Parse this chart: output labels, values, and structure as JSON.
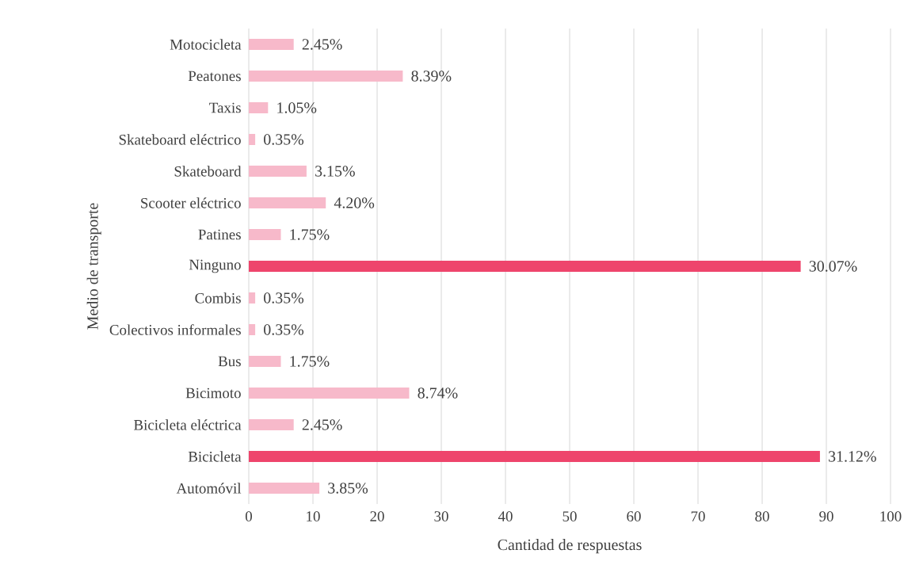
{
  "chart_data": {
    "type": "bar",
    "orientation": "horizontal",
    "xlabel": "Cantidad de respuestas",
    "ylabel": "Medio de transporte",
    "categories": [
      "Motocicleta",
      "Peatones",
      "Taxis",
      "Skateboard eléctrico",
      "Skateboard",
      "Scooter eléctrico",
      "Patines",
      "Ninguno",
      "Combis",
      "Colectivos informales",
      "Bus",
      "Bicimoto",
      "Bicicleta eléctrica",
      "Bicicleta",
      "Automóvil"
    ],
    "values": [
      7,
      24,
      3,
      1,
      9,
      12,
      5,
      86,
      1,
      1,
      5,
      25,
      7,
      89,
      11
    ],
    "annotations": [
      {
        "text": "2.45%",
        "x": 7,
        "y": "Motocicleta"
      },
      {
        "text": "8.39%",
        "x": 24,
        "y": "Peatones"
      },
      {
        "text": "1.05%",
        "x": 3,
        "y": "Taxis"
      },
      {
        "text": "0.35%",
        "x": 1,
        "y": "Skateboard eléctrico"
      },
      {
        "text": "3.15%",
        "x": 9,
        "y": "Skateboard"
      },
      {
        "text": "4.20%",
        "x": 12,
        "y": "Scooter eléctrico"
      },
      {
        "text": "1.75%",
        "x": 5,
        "y": "Patines"
      },
      {
        "text": "30.07%",
        "x": 86,
        "y": "Ninguno"
      },
      {
        "text": "0.35%",
        "x": 1,
        "y": "Combis"
      },
      {
        "text": "0.35%",
        "x": 1,
        "y": "Colectivos informales"
      },
      {
        "text": "1.75%",
        "x": 5,
        "y": "Bus"
      },
      {
        "text": "8.74%",
        "x": 25,
        "y": "Bicimoto"
      },
      {
        "text": "2.45%",
        "x": 7,
        "y": "Bicicleta eléctrica"
      },
      {
        "text": "31.12%",
        "x": 89,
        "y": "Bicicleta"
      },
      {
        "text": "3.85%",
        "x": 11,
        "y": "Automóvil"
      }
    ],
    "colors": [
      "#f7b9ca",
      "#f7b9ca",
      "#f7b9ca",
      "#f7b9ca",
      "#f7b9ca",
      "#f7b9ca",
      "#f7b9ca",
      "#ee456c",
      "#f7b9ca",
      "#f7b9ca",
      "#f7b9ca",
      "#f7b9ca",
      "#f7b9ca",
      "#ee456c",
      "#f7b9ca"
    ],
    "xlim": [
      0,
      100
    ],
    "xticks": [
      0,
      10,
      20,
      30,
      40,
      50,
      60,
      70,
      80,
      90,
      100
    ],
    "grid": "x"
  }
}
